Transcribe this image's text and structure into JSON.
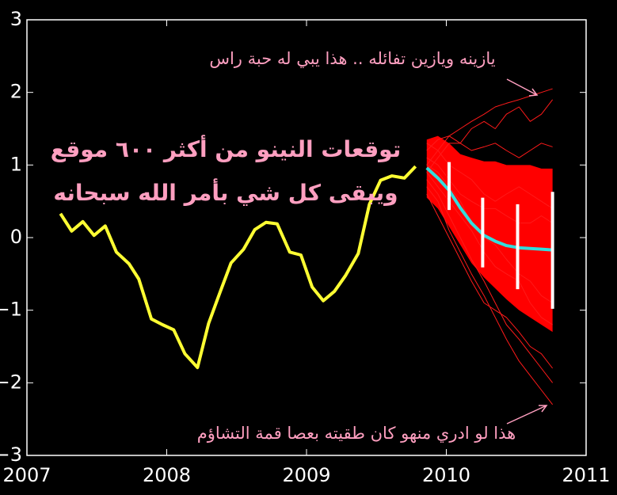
{
  "chart_data": {
    "type": "line",
    "title": "توقعات النينو من أكثر ٦٠٠ موقع",
    "subtitle": "ويبقى كل شي بأمر الله سبحانه",
    "annotations": [
      "يازينه ويازين تفائله .. هذا يبي له حبة راس",
      "هذا لو ادري منهو كان طقيته بعصا  قمة التشاؤم"
    ],
    "xlim": [
      2007,
      2011
    ],
    "xticks": [
      2007,
      2008,
      2009,
      2010,
      2011
    ],
    "ylim": [
      -3,
      3
    ],
    "yticks": [
      {
        "value": -3,
        "label": "−3"
      },
      {
        "value": -2,
        "label": "−2"
      },
      {
        "value": -1,
        "label": "−1"
      },
      0,
      1,
      2,
      3
    ],
    "series": [
      {
        "color": "#ffff33",
        "x": [
          2007.24,
          2007.32,
          2007.4,
          2007.48,
          2007.56,
          2007.64,
          2007.73,
          2007.8,
          2007.89,
          2007.97,
          2008.05,
          2008.13,
          2008.22,
          2008.3,
          2008.38,
          2008.46,
          2008.55,
          2008.63,
          2008.71,
          2008.79,
          2008.88,
          2008.96,
          2009.04,
          2009.12,
          2009.2,
          2009.28,
          2009.37,
          2009.45,
          2009.53,
          2009.61,
          2009.7,
          2009.78
        ],
        "values": [
          0.33,
          0.09,
          0.22,
          0.03,
          0.16,
          -0.2,
          -0.36,
          -0.57,
          -1.12,
          -1.2,
          -1.27,
          -1.6,
          -1.79,
          -1.18,
          -0.76,
          -0.35,
          -0.16,
          0.11,
          0.21,
          0.19,
          -0.2,
          -0.24,
          -0.68,
          -0.87,
          -0.74,
          -0.52,
          -0.22,
          0.46,
          0.79,
          0.85,
          0.82,
          0.98
        ]
      },
      {
        "color": "#33dddd",
        "x": [
          2009.86,
          2009.94,
          2010.02,
          2010.1,
          2010.18,
          2010.27,
          2010.35,
          2010.43,
          2010.52,
          2010.6,
          2010.68,
          2010.76
        ],
        "values": [
          0.96,
          0.82,
          0.65,
          0.41,
          0.2,
          0.03,
          -0.05,
          -0.11,
          -0.14,
          -0.15,
          -0.16,
          -0.17
        ]
      }
    ],
    "envelope": {
      "color": "#ff0000",
      "x": [
        2009.86,
        2009.94,
        2010.02,
        2010.1,
        2010.18,
        2010.27,
        2010.35,
        2010.43,
        2010.52,
        2010.6,
        2010.68,
        2010.76
      ],
      "upper": [
        1.35,
        1.4,
        1.3,
        1.15,
        1.1,
        1.05,
        1.05,
        1.0,
        1.0,
        1.0,
        0.95,
        0.95
      ],
      "lower": [
        0.55,
        0.4,
        0.15,
        -0.1,
        -0.35,
        -0.55,
        -0.7,
        -0.85,
        -1.0,
        -1.1,
        -1.2,
        -1.3
      ]
    },
    "members": {
      "color": "#ff1a1a",
      "x": [
        2009.86,
        2009.94,
        2010.02,
        2010.1,
        2010.18,
        2010.27,
        2010.35,
        2010.43,
        2010.52,
        2010.6,
        2010.68,
        2010.76
      ],
      "runs": [
        [
          1.0,
          1.2,
          1.4,
          1.5,
          1.6,
          1.7,
          1.8,
          1.85,
          1.9,
          1.95,
          2.0,
          2.05
        ],
        [
          0.9,
          1.1,
          1.3,
          1.3,
          1.5,
          1.6,
          1.5,
          1.7,
          1.8,
          1.6,
          1.7,
          1.9
        ],
        [
          1.2,
          1.35,
          1.4,
          1.3,
          1.2,
          1.25,
          1.3,
          1.2,
          1.1,
          1.2,
          1.3,
          1.25
        ],
        [
          0.8,
          0.6,
          0.3,
          0.0,
          -0.3,
          -0.6,
          -0.9,
          -1.2,
          -1.4,
          -1.6,
          -1.8,
          -2.0
        ],
        [
          0.7,
          0.5,
          0.1,
          -0.2,
          -0.5,
          -0.8,
          -1.1,
          -1.4,
          -1.7,
          -1.9,
          -2.1,
          -2.3
        ],
        [
          1.0,
          0.9,
          0.7,
          0.5,
          0.2,
          0.0,
          -0.1,
          -0.3,
          -0.5,
          -0.6,
          -0.8,
          -0.9
        ],
        [
          1.1,
          1.0,
          0.8,
          0.6,
          0.5,
          0.4,
          0.4,
          0.3,
          0.2,
          0.2,
          0.3,
          0.2
        ],
        [
          0.6,
          0.3,
          0.0,
          -0.3,
          -0.6,
          -0.9,
          -1.0,
          -1.1,
          -1.3,
          -1.5,
          -1.6,
          -1.8
        ],
        [
          1.3,
          1.2,
          1.0,
          0.9,
          0.8,
          0.6,
          0.5,
          0.6,
          0.7,
          0.6,
          0.5,
          0.4
        ],
        [
          0.9,
          0.7,
          0.5,
          0.3,
          0.1,
          -0.2,
          -0.4,
          -0.5,
          -0.6,
          -0.9,
          -1.1,
          -1.2
        ]
      ]
    },
    "error_bars": {
      "color": "#ffffff",
      "x": [
        2010.02,
        2010.26,
        2010.51,
        2010.76
      ],
      "values": [
        0.71,
        0.07,
        -0.125,
        -0.175
      ],
      "errors": [
        0.33,
        0.48,
        0.585,
        0.805
      ]
    }
  }
}
